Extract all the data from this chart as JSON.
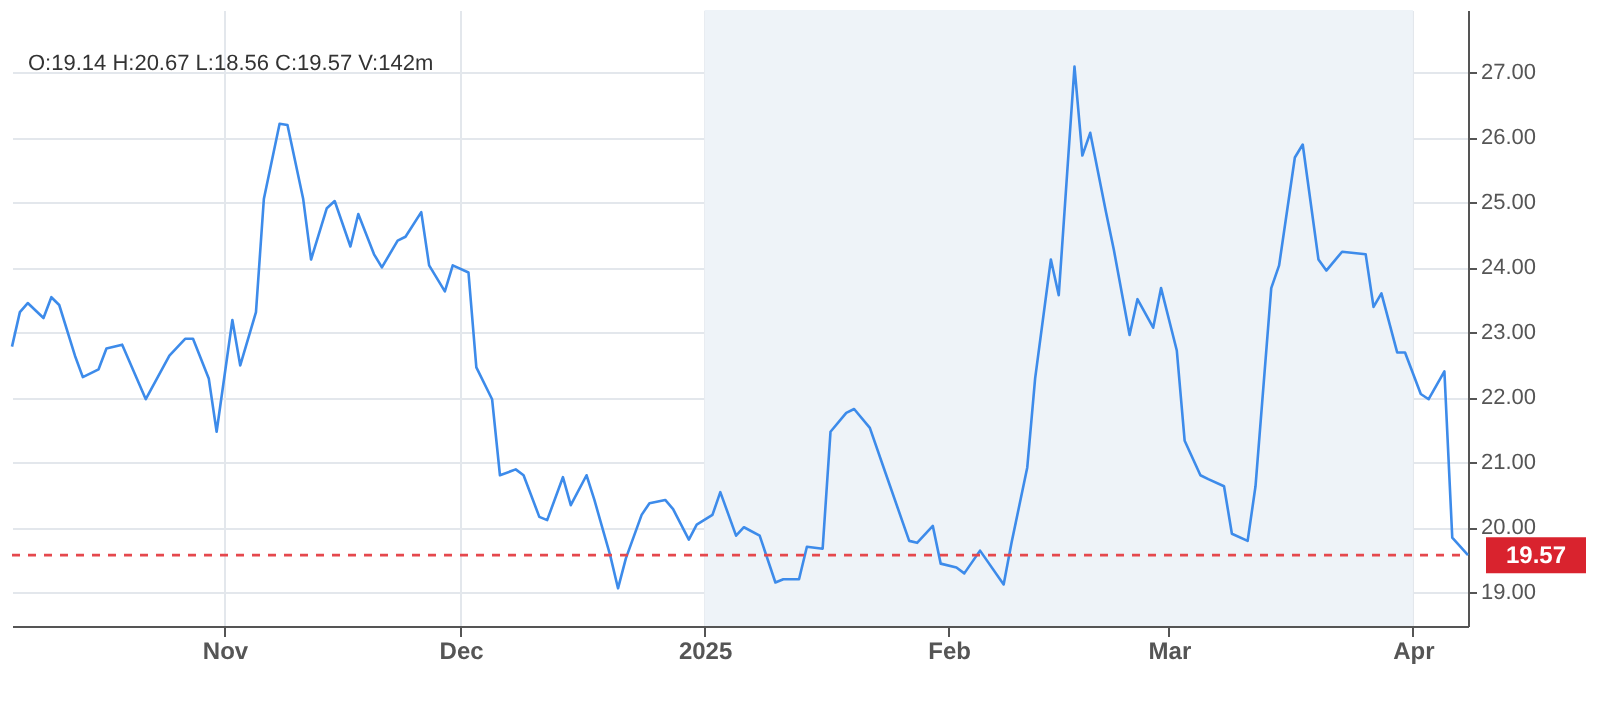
{
  "chart_data": {
    "type": "line",
    "annotations": [
      "O:19.14  H:20.67  L:18.56  C:19.57  V:142m"
    ],
    "x": [
      "2024-10-05",
      "2024-10-06",
      "2024-10-07",
      "2024-10-09",
      "2024-10-10",
      "2024-10-11",
      "2024-10-13",
      "2024-10-14",
      "2024-10-16",
      "2024-10-17",
      "2024-10-19",
      "2024-10-22",
      "2024-10-25",
      "2024-10-27",
      "2024-10-28",
      "2024-10-30",
      "2024-10-31",
      "2024-11-02",
      "2024-11-03",
      "2024-11-05",
      "2024-11-06",
      "2024-11-08",
      "2024-11-09",
      "2024-11-11",
      "2024-11-12",
      "2024-11-14",
      "2024-11-15",
      "2024-11-17",
      "2024-11-18",
      "2024-11-20",
      "2024-11-21",
      "2024-11-23",
      "2024-11-24",
      "2024-11-26",
      "2024-11-27",
      "2024-11-29",
      "2024-11-30",
      "2024-12-02",
      "2024-12-03",
      "2024-12-05",
      "2024-12-06",
      "2024-12-08",
      "2024-12-09",
      "2024-12-11",
      "2024-12-12",
      "2024-12-14",
      "2024-12-15",
      "2024-12-17",
      "2024-12-18",
      "2024-12-20",
      "2024-12-21",
      "2024-12-22",
      "2024-12-24",
      "2024-12-25",
      "2024-12-27",
      "2024-12-28",
      "2024-12-30",
      "2024-12-31",
      "2025-01-02",
      "2025-01-03",
      "2025-01-05",
      "2025-01-06",
      "2025-01-08",
      "2025-01-10",
      "2025-01-11",
      "2025-01-13",
      "2025-01-14",
      "2025-01-16",
      "2025-01-17",
      "2025-01-19",
      "2025-01-20",
      "2025-01-22",
      "2025-01-24",
      "2025-01-27",
      "2025-01-28",
      "2025-01-30",
      "2025-01-31",
      "2025-02-02",
      "2025-02-03",
      "2025-02-05",
      "2025-02-08",
      "2025-02-09",
      "2025-02-11",
      "2025-02-12",
      "2025-02-14",
      "2025-02-15",
      "2025-02-17",
      "2025-02-18",
      "2025-02-19",
      "2025-02-21",
      "2025-02-22",
      "2025-02-24",
      "2025-02-25",
      "2025-02-27",
      "2025-02-28",
      "2025-03-02",
      "2025-03-03",
      "2025-03-05",
      "2025-03-06",
      "2025-03-08",
      "2025-03-09",
      "2025-03-11",
      "2025-03-12",
      "2025-03-14",
      "2025-03-15",
      "2025-03-17",
      "2025-03-18",
      "2025-03-20",
      "2025-03-21",
      "2025-03-23",
      "2025-03-26",
      "2025-03-27",
      "2025-03-28",
      "2025-03-30",
      "2025-03-31",
      "2025-04-02",
      "2025-04-03",
      "2025-04-05",
      "2025-04-06",
      "2025-04-08"
    ],
    "series": [
      {
        "color": "#3d8bea",
        "values": [
          22.78,
          23.31,
          23.45,
          23.22,
          23.54,
          23.42,
          22.64,
          22.31,
          22.43,
          22.75,
          22.81,
          21.97,
          22.64,
          22.9,
          22.9,
          22.29,
          21.47,
          23.19,
          22.49,
          23.31,
          25.05,
          26.21,
          26.19,
          25.05,
          24.12,
          24.91,
          25.02,
          24.32,
          24.82,
          24.2,
          24.0,
          24.41,
          24.47,
          24.85,
          24.03,
          23.63,
          24.03,
          23.92,
          22.46,
          21.97,
          20.8,
          20.89,
          20.8,
          20.16,
          20.11,
          20.77,
          20.34,
          20.8,
          20.42,
          19.57,
          19.06,
          19.52,
          20.19,
          20.37,
          20.42,
          20.28,
          19.81,
          20.04,
          20.19,
          20.54,
          19.87,
          20.0,
          19.87,
          19.15,
          19.2,
          19.2,
          19.7,
          19.67,
          21.47,
          21.76,
          21.82,
          21.53,
          20.83,
          19.79,
          19.76,
          20.02,
          19.44,
          19.38,
          19.29,
          19.64,
          19.12,
          19.76,
          20.92,
          22.29,
          24.12,
          23.57,
          27.09,
          25.72,
          26.07,
          24.85,
          24.27,
          22.96,
          23.51,
          23.07,
          23.68,
          22.72,
          21.33,
          20.8,
          20.74,
          20.63,
          19.9,
          19.79,
          20.63,
          23.68,
          24.03,
          25.69,
          25.89,
          24.12,
          23.95,
          24.24,
          24.2,
          23.39,
          23.6,
          22.69,
          22.69,
          22.05,
          21.97,
          22.4,
          19.84,
          19.57
        ]
      }
    ],
    "xlim": [
      "2024-10-05",
      "2025-04-08"
    ],
    "xticks": [
      {
        "value": "2024-11-01",
        "label": "Nov"
      },
      {
        "value": "2024-12-01",
        "label": "Dec"
      },
      {
        "value": "2025-01-01",
        "label": "2025"
      },
      {
        "value": "2025-02-01",
        "label": "Feb"
      },
      {
        "value": "2025-03-01",
        "label": "Mar"
      },
      {
        "value": "2025-04-01",
        "label": "Apr"
      }
    ],
    "ylim": [
      18.48,
      27.96
    ],
    "yticks": [
      {
        "value": 19,
        "label": "19.00"
      },
      {
        "value": 20,
        "label": "20.00"
      },
      {
        "value": 21,
        "label": "21.00"
      },
      {
        "value": 22,
        "label": "22.00"
      },
      {
        "value": 23,
        "label": "23.00"
      },
      {
        "value": 24,
        "label": "24.00"
      },
      {
        "value": 25,
        "label": "25.00"
      },
      {
        "value": 26,
        "label": "26.00"
      },
      {
        "value": 27,
        "label": "27.00"
      }
    ],
    "ref_lines": [
      {
        "axis": "y",
        "value": 19.57,
        "label": "19.57",
        "color": "#e5484d",
        "line_style": "dashed"
      }
    ],
    "bands": [
      {
        "axis": "x",
        "from": "2025-01-01",
        "to": "2025-04-01",
        "color": "#eef3f8"
      }
    ],
    "grid": true,
    "marker": "none",
    "line_style": "solid"
  }
}
